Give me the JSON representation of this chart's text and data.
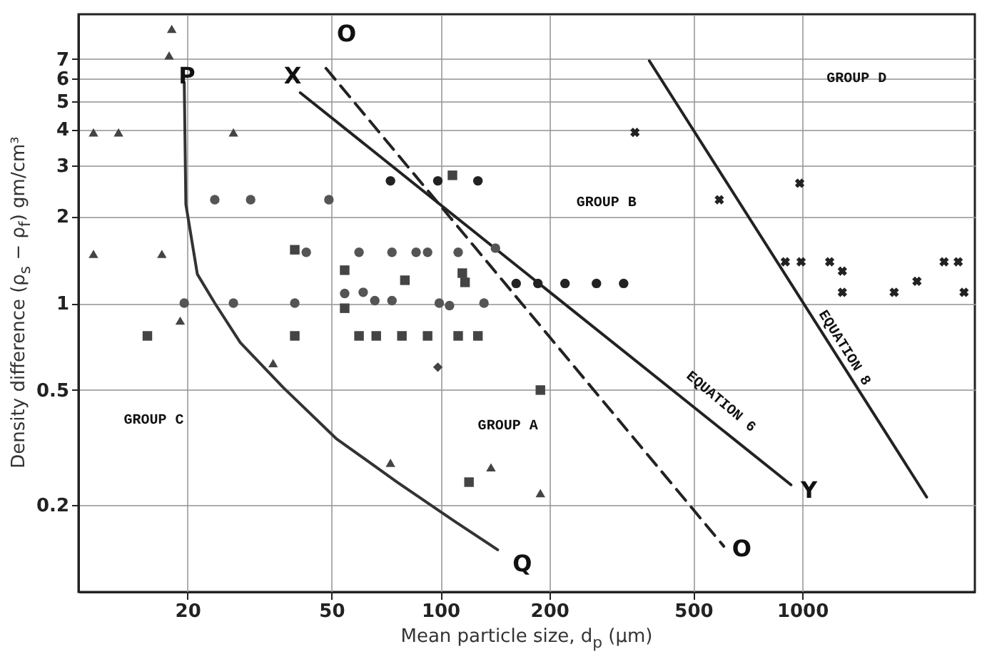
{
  "chart_data": {
    "type": "scatter",
    "xlabel": "Mean particle size, d$_{p}$ (μm)",
    "ylabel": "Density difference (ρ$_{s}$ − ρ$_{f}$) gm/cm³",
    "log": "xy",
    "grid": true,
    "xlim": [
      10,
      3000
    ],
    "xticks": [
      20,
      50,
      100,
      200,
      500,
      1000
    ],
    "ylim": [
      0.1,
      10
    ],
    "yticks": [
      0.2,
      0.5,
      1,
      2,
      3,
      4,
      5,
      6,
      7
    ],
    "series": [
      {
        "type": "line",
        "color": "#333333",
        "line_style": "solid",
        "x": [
          19.6,
          19.8,
          21.3,
          23.8,
          28,
          36.8,
          51.5,
          76,
          110,
          144
        ],
        "values": [
          5.8,
          2.2,
          1.26,
          1,
          0.73,
          0.51,
          0.34,
          0.24,
          0.175,
          0.14
        ]
      },
      {
        "type": "line",
        "color": "#222222",
        "line_style": "solid",
        "x": [
          41,
          931
        ],
        "values": [
          5.35,
          0.235
        ]
      },
      {
        "type": "line",
        "color": "#222222",
        "line_style": "dashed",
        "x": [
          48.3,
          607
        ],
        "values": [
          6.5,
          0.144
        ]
      },
      {
        "type": "line",
        "color": "#222222",
        "line_style": "solid",
        "x": [
          378,
          2208
        ],
        "values": [
          6.9,
          0.213
        ]
      },
      {
        "marker": "triangle",
        "color": "#444444",
        "x": [
          18.1,
          17.8,
          11.0,
          12.9,
          26.8,
          19.1,
          34.5,
          72.8,
          138,
          189
        ],
        "values": [
          8.9,
          7.2,
          3.9,
          3.9,
          3.9,
          0.87,
          0.62,
          0.28,
          0.27,
          0.22
        ]
      },
      {
        "marker": "triangle",
        "color": "#444444",
        "x": [
          11.0,
          17.0
        ],
        "values": [
          1.48,
          1.48
        ]
      },
      {
        "marker": "cross",
        "color": "#222222",
        "x": [
          345,
          590,
          984,
          898,
          993,
          1191,
          1291,
          1291,
          1795,
          2075,
          2466,
          2698,
          2800
        ],
        "values": [
          3.9,
          2.28,
          2.6,
          1.39,
          1.39,
          1.39,
          1.29,
          1.09,
          1.09,
          1.19,
          1.39,
          1.39,
          1.09
        ]
      },
      {
        "marker": "circle",
        "color": "#555555",
        "x": [
          23.8,
          29.9,
          49.2,
          42.6,
          59.6,
          73.5,
          85.7,
          92.2,
          112,
          19.6,
          26.8,
          39.6,
          54.4,
          61.2,
          65.9,
          73.5,
          99.3,
          106,
          132,
          142
        ],
        "values": [
          2.28,
          2.28,
          2.28,
          1.5,
          1.5,
          1.5,
          1.5,
          1.5,
          1.5,
          1.0,
          1.0,
          1.0,
          1.08,
          1.09,
          1.02,
          1.02,
          1.0,
          0.98,
          1.0,
          1.55
        ]
      },
      {
        "marker": "circle",
        "color": "#222222",
        "x": [
          72.8,
          98.4,
          127,
          162,
          186,
          221,
          270,
          321
        ],
        "values": [
          2.65,
          2.65,
          2.65,
          1.17,
          1.17,
          1.17,
          1.17,
          1.17
        ]
      },
      {
        "marker": "square",
        "color": "#444444",
        "x": [
          39.6,
          54.4,
          79.8,
          115,
          117,
          15.5,
          39.6,
          59.6,
          66.5,
          78.3,
          92.2,
          112,
          127,
          54.4,
          108,
          120,
          189
        ],
        "values": [
          1.53,
          1.3,
          1.2,
          1.27,
          1.18,
          0.77,
          0.77,
          0.77,
          0.77,
          0.77,
          0.77,
          0.77,
          0.77,
          0.96,
          2.77,
          0.24,
          0.5
        ]
      },
      {
        "marker": "diamond",
        "color": "#444444",
        "x": [
          98.4
        ],
        "values": [
          0.6
        ]
      }
    ],
    "annotations": [
      "GROUP D",
      "GROUP B",
      "GROUP C",
      "GROUP A",
      "EQUATION 6",
      "EQUATION 8",
      "P",
      "Q",
      "X",
      "Y",
      "O",
      "O"
    ]
  }
}
